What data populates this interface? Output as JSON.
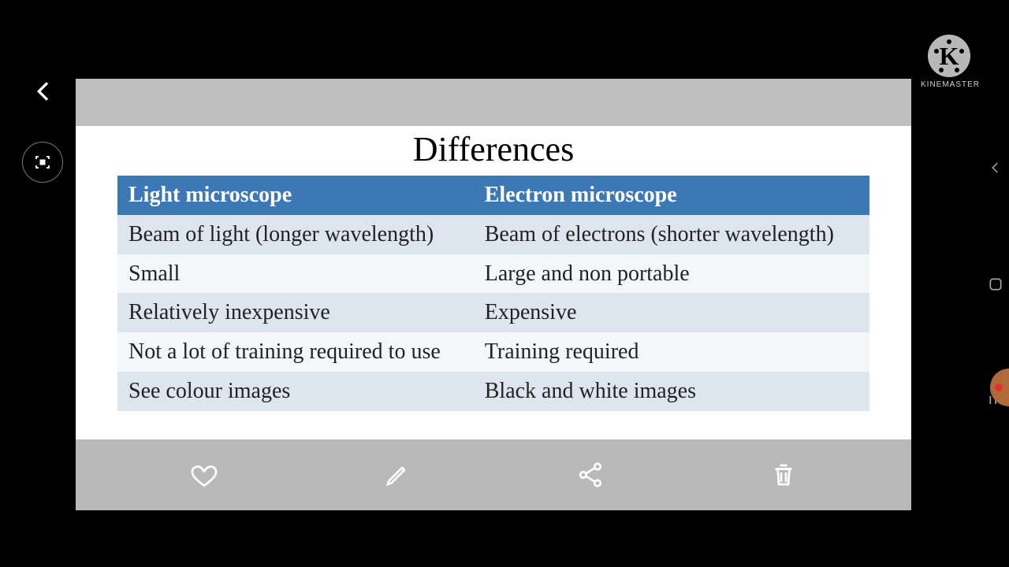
{
  "title": "Differences",
  "table": {
    "type": "table",
    "header_bg": "#3b78b5",
    "header_color": "#ffffff",
    "row_bg_even": "#dde5ee",
    "row_bg_odd": "#f4f7fa",
    "border_color": "#ffffff",
    "cell_fontsize": 28,
    "title_fontsize": 44,
    "columns": [
      "Light microscope",
      "Electron microscope"
    ],
    "rows": [
      [
        "Beam of light (longer wavelength)",
        "Beam of electrons (shorter wavelength)"
      ],
      [
        "Small",
        "Large and non portable"
      ],
      [
        "Relatively inexpensive",
        "Expensive"
      ],
      [
        "Not a lot of training required to use",
        "Training required"
      ],
      [
        "See colour images",
        "Black and white images"
      ]
    ]
  },
  "watermark": {
    "brand": "KINEMASTER",
    "letter": "K"
  },
  "colors": {
    "background": "#000000",
    "frame_top_bar": "#bfbfbf",
    "content_bg": "#ffffff",
    "toolbar_overlay": "rgba(128,128,128,0.55)",
    "icon_stroke": "#ffffff"
  }
}
